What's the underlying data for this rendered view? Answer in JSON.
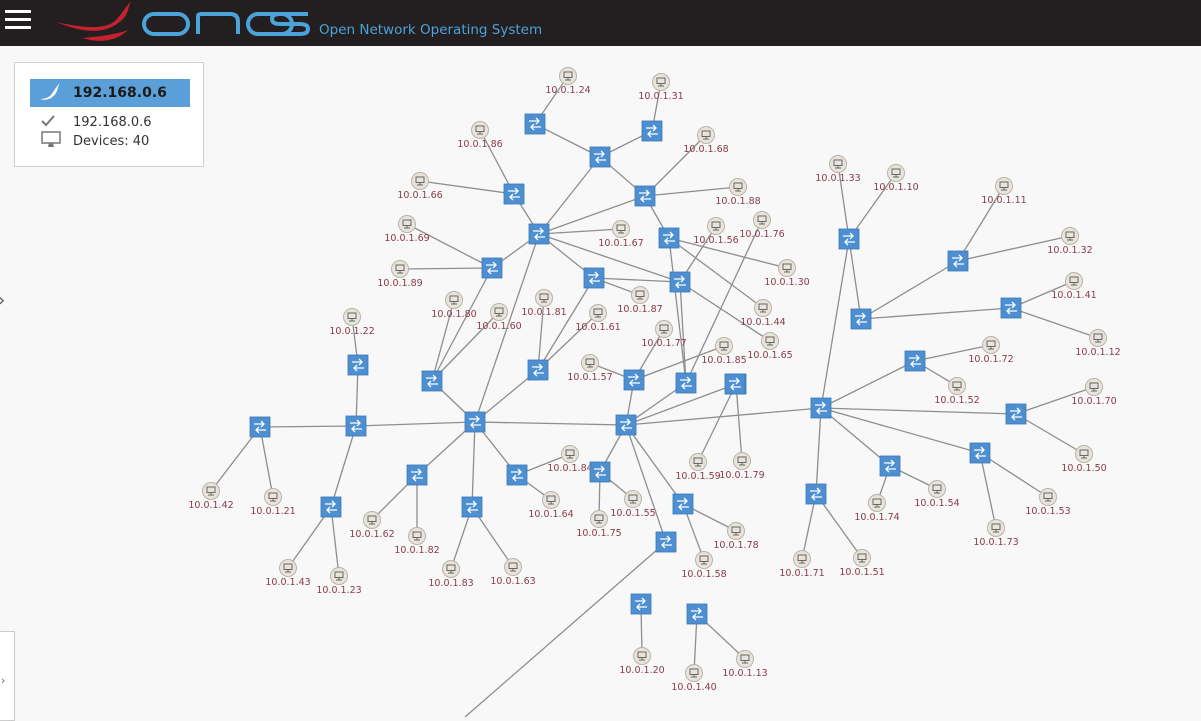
{
  "app": {
    "title": "Open Network Operating System",
    "logo_word": "onos"
  },
  "summary_panel": {
    "title": "192.168.0.6",
    "instance": "192.168.0.6",
    "devices_label": "Devices: 40"
  },
  "colors": {
    "masthead": "#231f20",
    "accent": "#5b9fd8",
    "switch_fill": "#4d8fd0",
    "host_fill": "#e8e4dc",
    "host_label": "#8a3b4c",
    "link": "#8e8e8e"
  },
  "topology": {
    "switch_count": 40,
    "host_labels": [
      "10.0.1.24",
      "10.0.1.31",
      "10.0.1.86",
      "10.0.1.68",
      "10.0.1.66",
      "10.0.1.88",
      "10.0.1.69",
      "10.0.1.67",
      "10.0.1.56",
      "10.0.1.76",
      "10.0.1.89",
      "10.0.1.30",
      "10.0.1.87",
      "10.0.1.80",
      "10.0.1.81",
      "10.0.1.60",
      "10.0.1.61",
      "10.0.1.44",
      "10.0.1.22",
      "10.0.1.77",
      "10.0.1.65",
      "10.0.1.85",
      "10.0.1.57",
      "10.0.1.33",
      "10.0.1.10",
      "10.0.1.11",
      "10.0.1.32",
      "10.0.1.41",
      "10.0.1.12",
      "10.0.1.72",
      "10.0.1.52",
      "10.0.1.70",
      "10.0.1.50",
      "10.0.1.59",
      "10.0.1.79",
      "10.0.1.84",
      "10.0.1.64",
      "10.0.1.55",
      "10.0.1.75",
      "10.0.1.42",
      "10.0.1.21",
      "10.0.1.62",
      "10.0.1.82",
      "10.0.1.83",
      "10.0.1.63",
      "10.0.1.43",
      "10.0.1.23",
      "10.0.1.78",
      "10.0.1.58",
      "10.0.1.74",
      "10.0.1.54",
      "10.0.1.53",
      "10.0.1.73",
      "10.0.1.71",
      "10.0.1.51",
      "10.0.1.20",
      "10.0.1.40",
      "10.0.1.13"
    ]
  }
}
